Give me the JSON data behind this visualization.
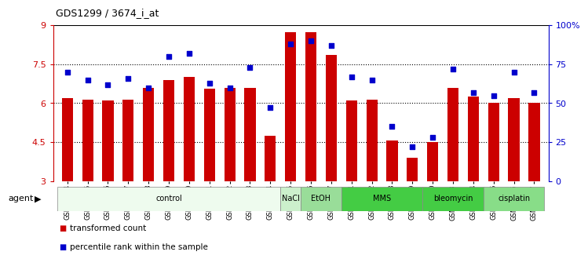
{
  "title": "GDS1299 / 3674_i_at",
  "samples": [
    "GSM40714",
    "GSM40715",
    "GSM40716",
    "GSM40717",
    "GSM40718",
    "GSM40719",
    "GSM40720",
    "GSM40721",
    "GSM40722",
    "GSM40723",
    "GSM40724",
    "GSM40725",
    "GSM40726",
    "GSM40727",
    "GSM40731",
    "GSM40732",
    "GSM40728",
    "GSM40729",
    "GSM40730",
    "GSM40733",
    "GSM40734",
    "GSM40735",
    "GSM40736",
    "GSM40737"
  ],
  "bar_values": [
    6.2,
    6.15,
    6.1,
    6.15,
    6.6,
    6.9,
    7.0,
    6.55,
    6.6,
    6.6,
    4.75,
    8.75,
    8.75,
    7.85,
    6.1,
    6.15,
    4.55,
    3.9,
    4.5,
    6.6,
    6.25,
    6.0,
    6.2,
    6.0
  ],
  "dot_values": [
    70,
    65,
    62,
    66,
    60,
    80,
    82,
    63,
    60,
    73,
    47,
    88,
    90,
    87,
    67,
    65,
    35,
    22,
    28,
    72,
    57,
    55,
    70,
    57
  ],
  "bar_color": "#cc0000",
  "dot_color": "#0000cc",
  "ylim_left": [
    3,
    9
  ],
  "ylim_right": [
    0,
    100
  ],
  "yticks_left": [
    3,
    4.5,
    6,
    7.5,
    9
  ],
  "ytick_labels_left": [
    "3",
    "4.5",
    "6",
    "7.5",
    "9"
  ],
  "yticks_right": [
    0,
    25,
    50,
    75,
    100
  ],
  "ytick_labels_right": [
    "0",
    "25",
    "50",
    "75",
    "100%"
  ],
  "agents": [
    {
      "label": "control",
      "start": 0,
      "end": 11,
      "color": "#eefbee"
    },
    {
      "label": "NaCl",
      "start": 11,
      "end": 12,
      "color": "#ccf0cc"
    },
    {
      "label": "EtOH",
      "start": 12,
      "end": 14,
      "color": "#99dd99"
    },
    {
      "label": "MMS",
      "start": 14,
      "end": 18,
      "color": "#44cc44"
    },
    {
      "label": "bleomycin",
      "start": 18,
      "end": 21,
      "color": "#44cc44"
    },
    {
      "label": "cisplatin",
      "start": 21,
      "end": 24,
      "color": "#88dd88"
    }
  ],
  "legend_label1": "transformed count",
  "legend_label2": "percentile rank within the sample",
  "agent_label": "agent"
}
